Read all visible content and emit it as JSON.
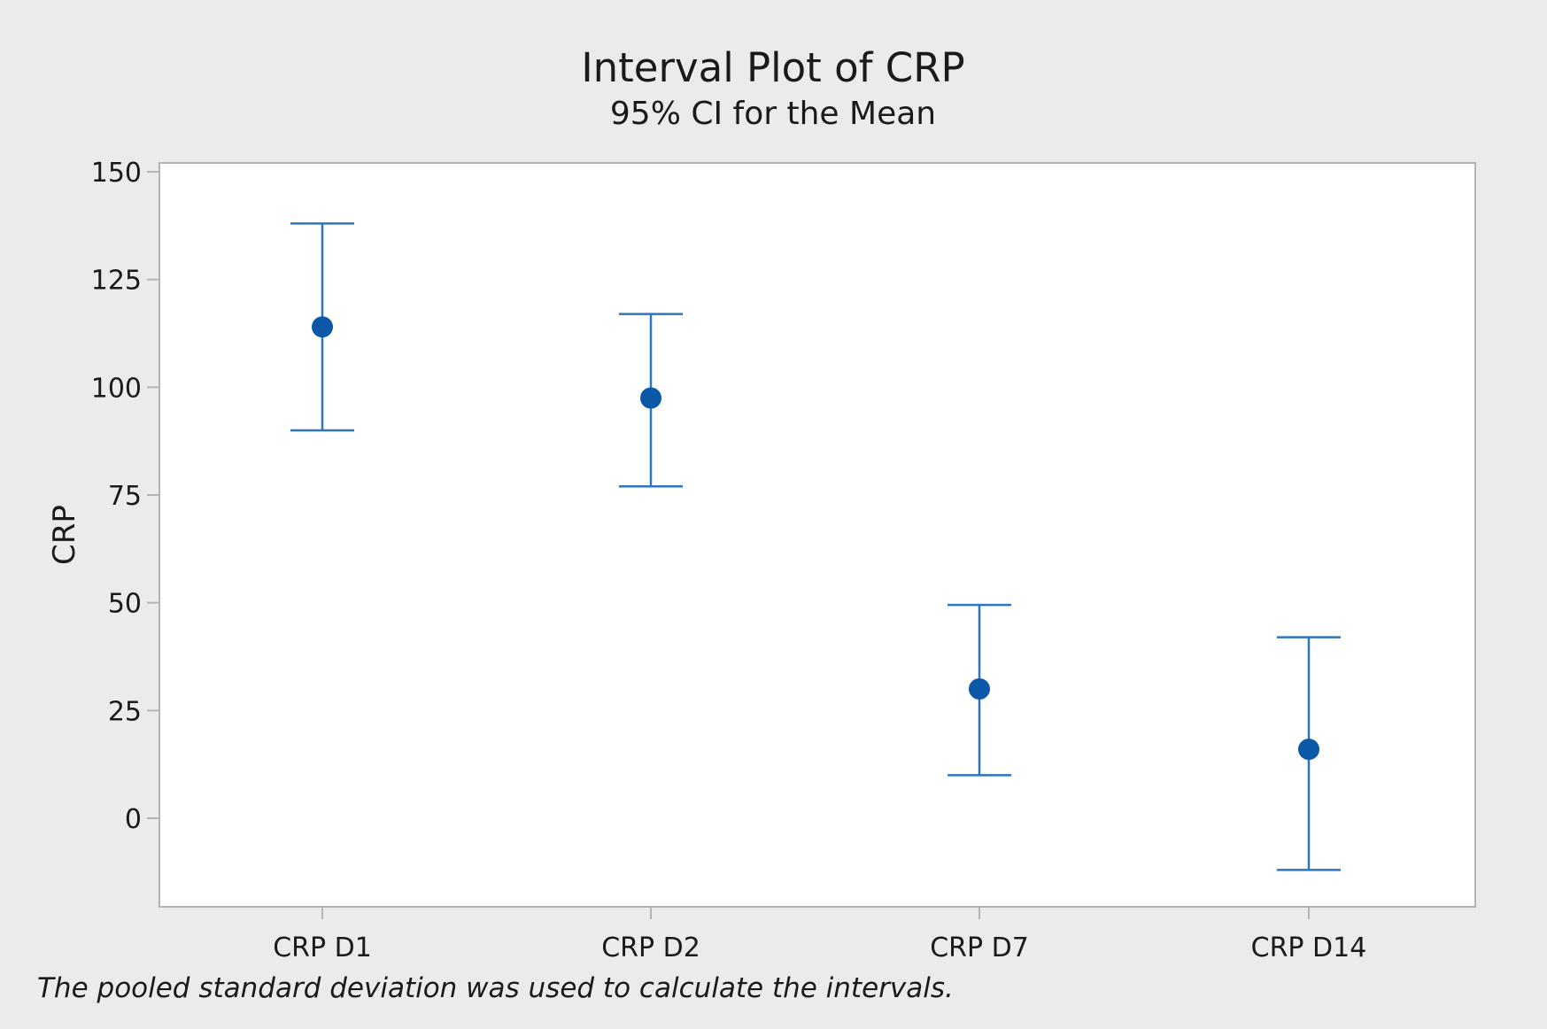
{
  "chart_data": {
    "type": "interval",
    "title": "Interval Plot of CRP",
    "subtitle": "95% CI for the Mean",
    "xlabel": "",
    "ylabel": "CRP",
    "categories": [
      "CRP D1",
      "CRP D2",
      "CRP D7",
      "CRP D14"
    ],
    "means": [
      114,
      97.5,
      30,
      16
    ],
    "ci_lower": [
      90,
      77,
      10,
      -12
    ],
    "ci_upper": [
      138,
      117,
      49.5,
      42
    ],
    "ylim": [
      -20,
      150
    ],
    "yticks": [
      0,
      25,
      50,
      75,
      100,
      125,
      150
    ],
    "ytick_labels": [
      "0",
      "25",
      "50",
      "75",
      "100",
      "125",
      "150"
    ],
    "grid": false,
    "footnote": "The pooled standard deviation was used to calculate the intervals.",
    "colors": {
      "background": "#ebebeb",
      "plot_area": "#ffffff",
      "interval_line": "#2e75c0",
      "mean_marker": "#0b57a8",
      "frame": "#b4b4b4",
      "text": "#1a1a1a"
    }
  }
}
